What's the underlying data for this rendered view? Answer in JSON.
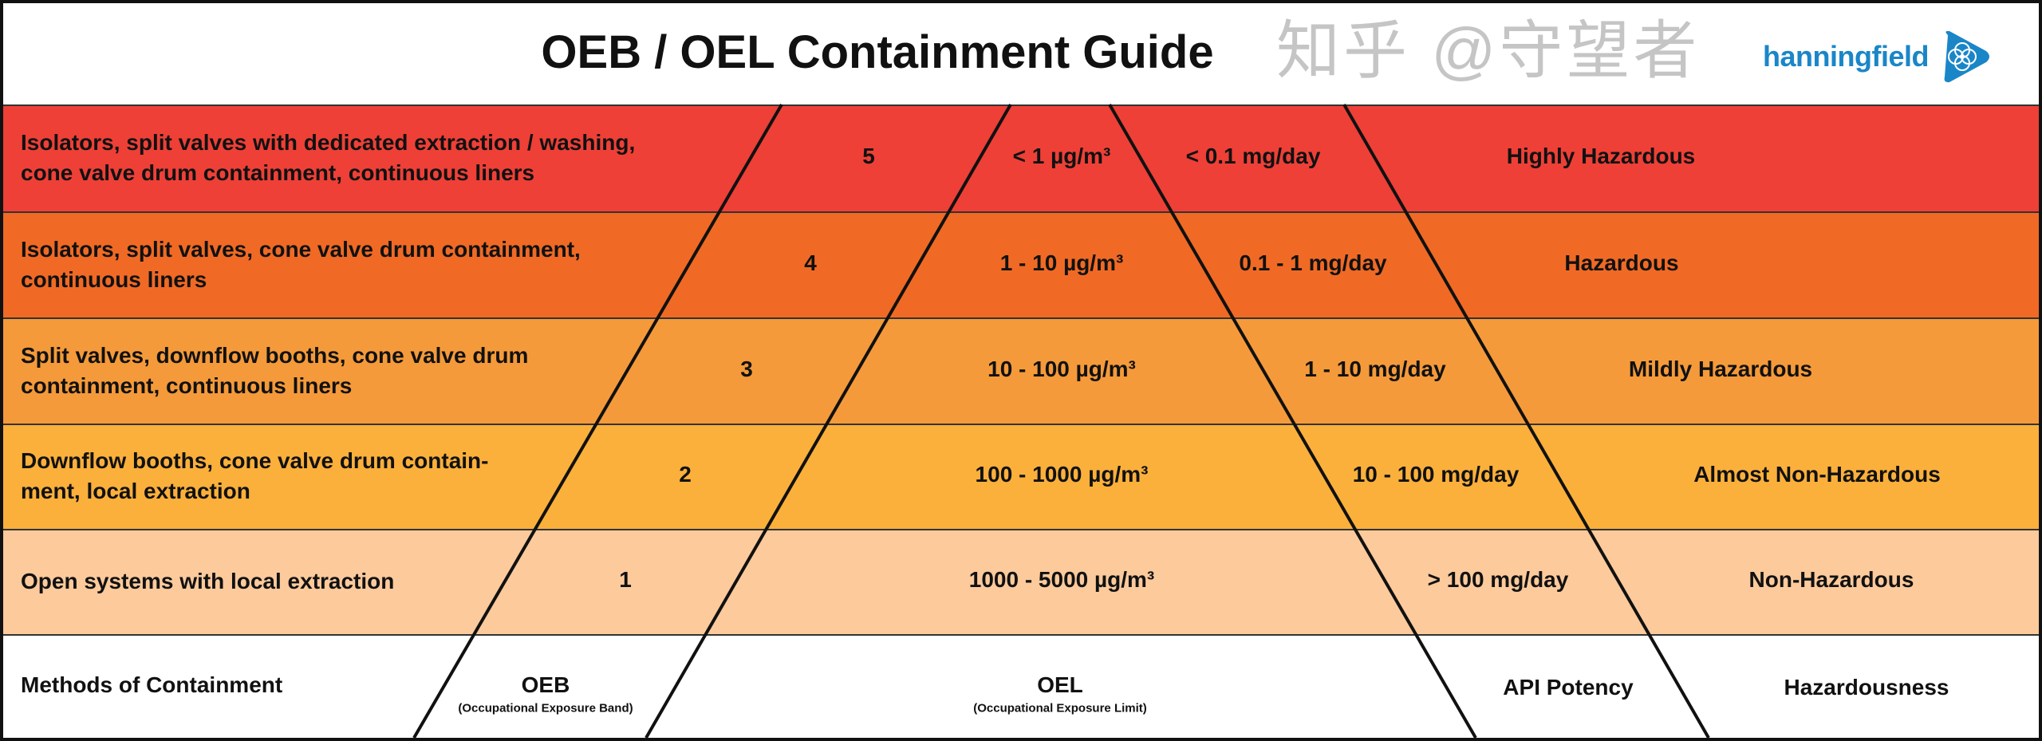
{
  "title": "OEB / OEL Containment Guide",
  "logo": {
    "text": "hanningfield",
    "color": "#1a86c8",
    "icon": "flower-triangle-icon"
  },
  "rows": [
    {
      "method": "Isolators, split valves with dedicated extraction / washing,",
      "method2": "cone valve drum containment, continuous liners",
      "oeb": "5",
      "oel": "< 1 µg/m³",
      "potency": "< 0.1 mg/day",
      "hazard": "Highly Hazardous",
      "color": "#ee4037"
    },
    {
      "method": "Isolators, split valves, cone valve drum containment,",
      "method2": "continuous liners",
      "oeb": "4",
      "oel": "1 - 10 µg/m³",
      "potency": "0.1 - 1 mg/day",
      "hazard": "Hazardous",
      "color": "#f06a25"
    },
    {
      "method": "Split valves, downflow booths, cone valve drum",
      "method2": "containment, continuous liners",
      "oeb": "3",
      "oel": "10 - 100 µg/m³",
      "potency": "1 - 10 mg/day",
      "hazard": "Mildly Hazardous",
      "color": "#f59a3a"
    },
    {
      "method": "Downflow booths, cone valve drum contain-",
      "method2": "ment, local extraction",
      "oeb": "2",
      "oel": "100 - 1000 µg/m³",
      "potency": "10 - 100 mg/day",
      "hazard": "Almost Non-Hazardous",
      "color": "#fbb03b"
    },
    {
      "method": "Open systems with local extraction",
      "method2": "",
      "oeb": "1",
      "oel": "1000 - 5000 µg/m³",
      "potency": "> 100 mg/day",
      "hazard": "Non-Hazardous",
      "color": "#fdca9c"
    }
  ],
  "footer": {
    "methods": "Methods of Containment",
    "oeb": "OEB",
    "oeb_sub": "(Occupational Exposure Band)",
    "oel": "OEL",
    "oel_sub": "(Occupational Exposure Limit)",
    "potency": "API Potency",
    "hazard": "Hazardousness"
  },
  "watermark": "知乎 @守望者"
}
